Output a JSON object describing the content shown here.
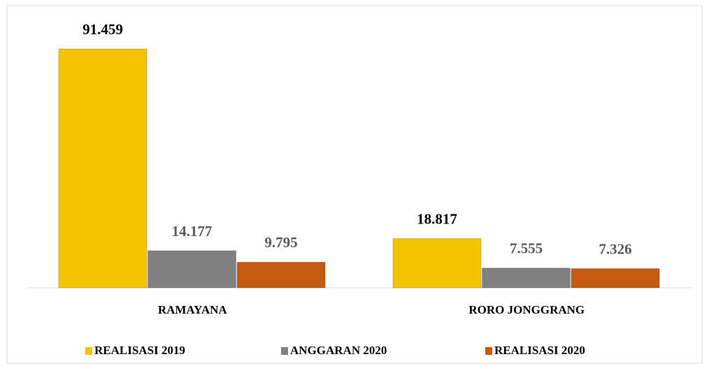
{
  "chart_data": {
    "type": "bar",
    "categories": [
      "RAMAYANA",
      "RORO JONGGRANG"
    ],
    "series": [
      {
        "name": "REALISASI 2019",
        "color": "#f5c400",
        "values": [
          91.459,
          18.817
        ]
      },
      {
        "name": "ANGGARAN 2020",
        "color": "#808080",
        "values": [
          14.177,
          7.555
        ]
      },
      {
        "name": "REALISASI 2020",
        "color": "#c55a11",
        "values": [
          9.795,
          7.326
        ]
      }
    ],
    "grid": false
  }
}
